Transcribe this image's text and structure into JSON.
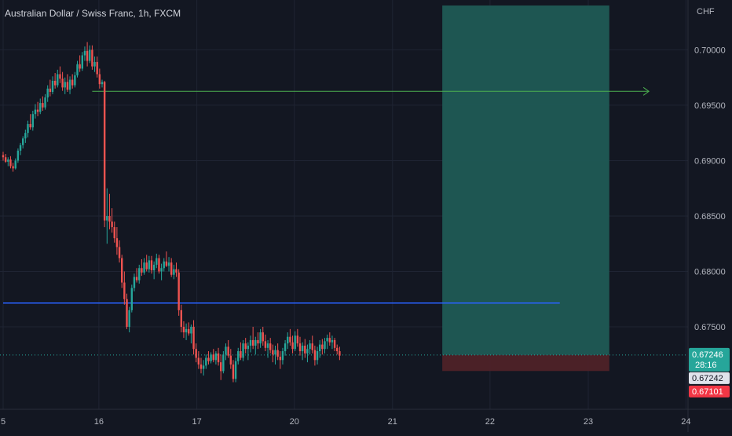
{
  "chart_data": {
    "type": "candlestick",
    "title": "Australian Dollar / Swiss Franc, 1h, FXCM",
    "y_axis_label": "CHF",
    "ylim": [
      0.6655,
      0.704
    ],
    "y_ticks": [
      {
        "value": 0.7,
        "label": "0.70000"
      },
      {
        "value": 0.695,
        "label": "0.69500"
      },
      {
        "value": 0.69,
        "label": "0.69000"
      },
      {
        "value": 0.685,
        "label": "0.68500"
      },
      {
        "value": 0.68,
        "label": "0.68000"
      },
      {
        "value": 0.675,
        "label": "0.67500"
      }
    ],
    "x_ticks": [
      {
        "label": "5",
        "index": 0
      },
      {
        "label": "16",
        "index": 38.7
      },
      {
        "label": "17",
        "index": 78.3
      },
      {
        "label": "20",
        "index": 117.7
      },
      {
        "label": "21",
        "index": 157.4
      },
      {
        "label": "22",
        "index": 196.8
      },
      {
        "label": "23",
        "index": 236.5
      },
      {
        "label": "24",
        "index": 276
      }
    ],
    "candles": [
      [
        0.6905,
        0.6908,
        0.69,
        0.6903
      ],
      [
        0.6903,
        0.6906,
        0.6898,
        0.6899
      ],
      [
        0.6899,
        0.6903,
        0.6895,
        0.6901
      ],
      [
        0.6901,
        0.6904,
        0.6893,
        0.6895
      ],
      [
        0.6895,
        0.6898,
        0.689,
        0.6893
      ],
      [
        0.6893,
        0.6902,
        0.6892,
        0.69
      ],
      [
        0.69,
        0.6911,
        0.6898,
        0.6909
      ],
      [
        0.6909,
        0.6916,
        0.6905,
        0.6914
      ],
      [
        0.6914,
        0.6922,
        0.6911,
        0.692
      ],
      [
        0.692,
        0.6928,
        0.6916,
        0.6925
      ],
      [
        0.6925,
        0.6936,
        0.6921,
        0.6933
      ],
      [
        0.6933,
        0.6942,
        0.6928,
        0.693
      ],
      [
        0.693,
        0.6945,
        0.6927,
        0.6942
      ],
      [
        0.6942,
        0.6951,
        0.6938,
        0.6946
      ],
      [
        0.6946,
        0.6953,
        0.694,
        0.6944
      ],
      [
        0.6944,
        0.6956,
        0.6942,
        0.6952
      ],
      [
        0.6952,
        0.6958,
        0.6945,
        0.6948
      ],
      [
        0.6948,
        0.696,
        0.6946,
        0.6957
      ],
      [
        0.6957,
        0.6968,
        0.6953,
        0.6965
      ],
      [
        0.6965,
        0.6973,
        0.6958,
        0.6962
      ],
      [
        0.6962,
        0.6976,
        0.696,
        0.6972
      ],
      [
        0.6972,
        0.6979,
        0.6965,
        0.6968
      ],
      [
        0.6968,
        0.6982,
        0.6966,
        0.6978
      ],
      [
        0.6978,
        0.6985,
        0.697,
        0.6974
      ],
      [
        0.6974,
        0.698,
        0.6963,
        0.6966
      ],
      [
        0.6966,
        0.6975,
        0.696,
        0.6971
      ],
      [
        0.6971,
        0.6978,
        0.6962,
        0.6964
      ],
      [
        0.6964,
        0.6976,
        0.696,
        0.6973
      ],
      [
        0.6973,
        0.6978,
        0.6965,
        0.6968
      ],
      [
        0.6968,
        0.698,
        0.6966,
        0.6977
      ],
      [
        0.6977,
        0.699,
        0.6975,
        0.6987
      ],
      [
        0.6987,
        0.6995,
        0.698,
        0.6983
      ],
      [
        0.6983,
        0.6998,
        0.6981,
        0.6995
      ],
      [
        0.6995,
        0.7003,
        0.699,
        0.6999
      ],
      [
        0.6999,
        0.7007,
        0.6985,
        0.699
      ],
      [
        0.699,
        0.7004,
        0.6988,
        0.7
      ],
      [
        0.7,
        0.7004,
        0.6982,
        0.6985
      ],
      [
        0.6985,
        0.6994,
        0.698,
        0.6989
      ],
      [
        0.6989,
        0.6994,
        0.6975,
        0.6978
      ],
      [
        0.6978,
        0.6983,
        0.6965,
        0.6969
      ],
      [
        0.6969,
        0.6973,
        0.6966,
        0.6971
      ],
      [
        0.6971,
        0.6972,
        0.684,
        0.6846
      ],
      [
        0.6846,
        0.6875,
        0.6825,
        0.685
      ],
      [
        0.685,
        0.687,
        0.6838,
        0.6845
      ],
      [
        0.6845,
        0.6857,
        0.6835,
        0.684
      ],
      [
        0.684,
        0.6845,
        0.6826,
        0.683
      ],
      [
        0.683,
        0.684,
        0.6815,
        0.6822
      ],
      [
        0.6822,
        0.6828,
        0.6808,
        0.6812
      ],
      [
        0.6812,
        0.6815,
        0.6785,
        0.679
      ],
      [
        0.679,
        0.68,
        0.677,
        0.6775
      ],
      [
        0.6775,
        0.678,
        0.6748,
        0.675
      ],
      [
        0.675,
        0.6768,
        0.6745,
        0.6765
      ],
      [
        0.6765,
        0.6788,
        0.6763,
        0.6785
      ],
      [
        0.6785,
        0.6798,
        0.6782,
        0.6795
      ],
      [
        0.6795,
        0.6803,
        0.679,
        0.6792
      ],
      [
        0.6792,
        0.6806,
        0.6789,
        0.6803
      ],
      [
        0.6803,
        0.6811,
        0.6796,
        0.6799
      ],
      [
        0.6799,
        0.6812,
        0.6797,
        0.6808
      ],
      [
        0.6808,
        0.6815,
        0.68,
        0.6802
      ],
      [
        0.6802,
        0.6814,
        0.6799,
        0.681
      ],
      [
        0.681,
        0.6814,
        0.6798,
        0.6801
      ],
      [
        0.6801,
        0.6809,
        0.6793,
        0.6806
      ],
      [
        0.6806,
        0.6816,
        0.6803,
        0.6812
      ],
      [
        0.6812,
        0.6815,
        0.6798,
        0.68
      ],
      [
        0.68,
        0.6807,
        0.6792,
        0.6803
      ],
      [
        0.6803,
        0.6812,
        0.68,
        0.6809
      ],
      [
        0.6809,
        0.6818,
        0.6804,
        0.6805
      ],
      [
        0.6805,
        0.6813,
        0.68,
        0.6808
      ],
      [
        0.6808,
        0.6812,
        0.6795,
        0.6797
      ],
      [
        0.6797,
        0.6806,
        0.6793,
        0.6802
      ],
      [
        0.6802,
        0.6808,
        0.6795,
        0.6799
      ],
      [
        0.6799,
        0.6802,
        0.676,
        0.6765
      ],
      [
        0.6765,
        0.677,
        0.6745,
        0.675
      ],
      [
        0.675,
        0.6755,
        0.674,
        0.6745
      ],
      [
        0.6745,
        0.6753,
        0.6738,
        0.6748
      ],
      [
        0.6748,
        0.6754,
        0.6742,
        0.6744
      ],
      [
        0.6744,
        0.6752,
        0.6735,
        0.675
      ],
      [
        0.675,
        0.6756,
        0.6725,
        0.673
      ],
      [
        0.673,
        0.6735,
        0.6718,
        0.6722
      ],
      [
        0.6722,
        0.6728,
        0.6712,
        0.6716
      ],
      [
        0.6716,
        0.6722,
        0.6708,
        0.6712
      ],
      [
        0.6712,
        0.672,
        0.6706,
        0.6715
      ],
      [
        0.6715,
        0.6725,
        0.6712,
        0.6722
      ],
      [
        0.6722,
        0.6728,
        0.6716,
        0.6719
      ],
      [
        0.6719,
        0.6727,
        0.6717,
        0.6725
      ],
      [
        0.6725,
        0.673,
        0.6718,
        0.672
      ],
      [
        0.672,
        0.6728,
        0.6716,
        0.6726
      ],
      [
        0.6726,
        0.6731,
        0.6715,
        0.6718
      ],
      [
        0.6718,
        0.6725,
        0.6702,
        0.671
      ],
      [
        0.671,
        0.6728,
        0.6708,
        0.6725
      ],
      [
        0.6725,
        0.6735,
        0.672,
        0.6732
      ],
      [
        0.6732,
        0.6738,
        0.6722,
        0.6724
      ],
      [
        0.6724,
        0.673,
        0.6712,
        0.6716
      ],
      [
        0.6716,
        0.672,
        0.67,
        0.6703
      ],
      [
        0.6703,
        0.6722,
        0.67,
        0.6719
      ],
      [
        0.6719,
        0.6731,
        0.6716,
        0.6728
      ],
      [
        0.6728,
        0.6736,
        0.672,
        0.6722
      ],
      [
        0.6722,
        0.6738,
        0.6719,
        0.6735
      ],
      [
        0.6735,
        0.674,
        0.6726,
        0.673
      ],
      [
        0.673,
        0.6736,
        0.672,
        0.6733
      ],
      [
        0.6733,
        0.6742,
        0.6727,
        0.6738
      ],
      [
        0.6738,
        0.675,
        0.673,
        0.6733
      ],
      [
        0.6733,
        0.6741,
        0.6725,
        0.6738
      ],
      [
        0.6738,
        0.6745,
        0.673,
        0.6735
      ],
      [
        0.6735,
        0.6748,
        0.6731,
        0.6745
      ],
      [
        0.6745,
        0.675,
        0.6733,
        0.6737
      ],
      [
        0.6737,
        0.6743,
        0.6728,
        0.6731
      ],
      [
        0.6731,
        0.6738,
        0.6722,
        0.6735
      ],
      [
        0.6735,
        0.674,
        0.6726,
        0.6729
      ],
      [
        0.6729,
        0.6734,
        0.6718,
        0.6725
      ],
      [
        0.6725,
        0.6733,
        0.6716,
        0.6729
      ],
      [
        0.6729,
        0.6735,
        0.672,
        0.6723
      ],
      [
        0.6723,
        0.6728,
        0.6712,
        0.672
      ],
      [
        0.672,
        0.6731,
        0.6716,
        0.6728
      ],
      [
        0.6728,
        0.6738,
        0.6724,
        0.6735
      ],
      [
        0.6735,
        0.6745,
        0.673,
        0.6741
      ],
      [
        0.6741,
        0.6748,
        0.6733,
        0.6736
      ],
      [
        0.6736,
        0.6742,
        0.6726,
        0.673
      ],
      [
        0.673,
        0.6746,
        0.6728,
        0.6742
      ],
      [
        0.6742,
        0.6748,
        0.6732,
        0.6735
      ],
      [
        0.6735,
        0.6741,
        0.6724,
        0.6728
      ],
      [
        0.6728,
        0.6736,
        0.672,
        0.6733
      ],
      [
        0.6733,
        0.6739,
        0.6722,
        0.6726
      ],
      [
        0.6726,
        0.6734,
        0.6718,
        0.673
      ],
      [
        0.673,
        0.6738,
        0.6725,
        0.6735
      ],
      [
        0.6735,
        0.6742,
        0.6726,
        0.6729
      ],
      [
        0.6729,
        0.6733,
        0.6715,
        0.672
      ],
      [
        0.672,
        0.6732,
        0.6716,
        0.6728
      ],
      [
        0.6728,
        0.6738,
        0.6722,
        0.6734
      ],
      [
        0.6734,
        0.6739,
        0.6725,
        0.673
      ],
      [
        0.673,
        0.674,
        0.6726,
        0.6737
      ],
      [
        0.6737,
        0.6743,
        0.673,
        0.674
      ],
      [
        0.674,
        0.6745,
        0.6733,
        0.6736
      ],
      [
        0.6736,
        0.6742,
        0.673,
        0.6738
      ],
      [
        0.6738,
        0.674,
        0.6728,
        0.6731
      ],
      [
        0.6731,
        0.6734,
        0.6725,
        0.6728
      ],
      [
        0.6728,
        0.6732,
        0.672,
        0.6724
      ]
    ],
    "horizontal_lines": [
      {
        "name": "entry-level",
        "value": 0.67715,
        "color": "#2962ff",
        "from_index": 0,
        "to_index": 225
      },
      {
        "name": "current-price",
        "value": 0.67246,
        "color": "#26a69a",
        "style": "dotted"
      }
    ],
    "target_arrow": {
      "value": 0.69625,
      "from_index": 36,
      "to_index": 261,
      "color": "#4caf50"
    },
    "position_box": {
      "from_index": 177.5,
      "to_index": 245,
      "profit_top": 0.704,
      "entry": 0.67246,
      "stop": 0.67101,
      "profit_color": "#1f5a55",
      "stop_color": "#4e2228"
    },
    "price_badges": [
      {
        "value": 0.67246,
        "label": "0.67246",
        "sub": "28:16",
        "bg": "#26a69a"
      },
      {
        "value": 0.67242,
        "label": "0.67242",
        "bg": "#e0e3eb",
        "fg": "#131722"
      },
      {
        "value": 0.67101,
        "label": "0.67101",
        "bg": "#f23645"
      }
    ],
    "colors": {
      "up": "#26a69a",
      "down": "#ef5350",
      "grid": "#1f2433",
      "background": "#131722"
    }
  }
}
